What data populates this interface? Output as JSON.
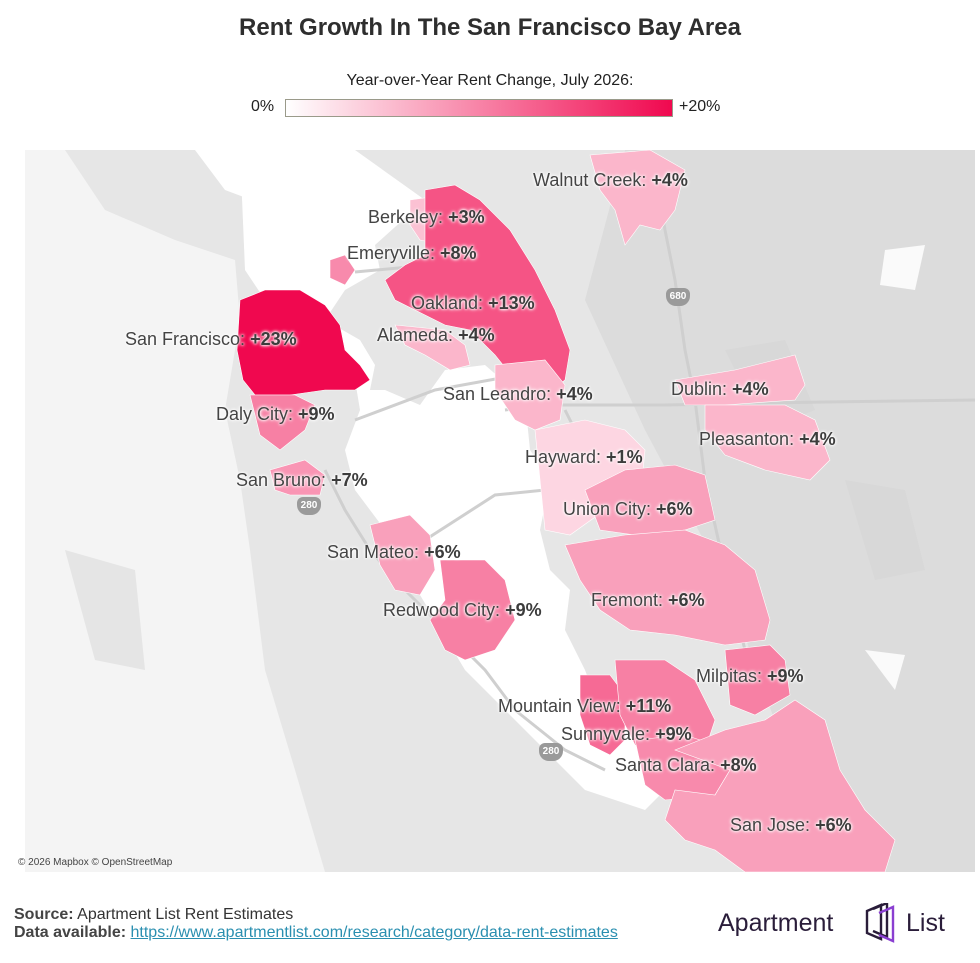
{
  "title": "Rent Growth In The San Francisco Bay Area",
  "legend": {
    "title": "Year-over-Year Rent Change, July 2026:",
    "min_label": "0%",
    "max_label": "+20%",
    "min_color": "#ffffff",
    "max_color": "#f0084f"
  },
  "cities": [
    {
      "name": "Walnut Creek:",
      "value": "+4%",
      "change": 4
    },
    {
      "name": "Berkeley:",
      "value": "+3%",
      "change": 3
    },
    {
      "name": "Emeryville:",
      "value": "+8%",
      "change": 8
    },
    {
      "name": "Oakland:",
      "value": "+13%",
      "change": 13
    },
    {
      "name": "San Francisco:",
      "value": "+23%",
      "change": 23
    },
    {
      "name": "Alameda:",
      "value": "+4%",
      "change": 4
    },
    {
      "name": "San Leandro:",
      "value": "+4%",
      "change": 4
    },
    {
      "name": "Dublin:",
      "value": "+4%",
      "change": 4
    },
    {
      "name": "Daly City:",
      "value": "+9%",
      "change": 9
    },
    {
      "name": "Pleasanton:",
      "value": "+4%",
      "change": 4
    },
    {
      "name": "Hayward:",
      "value": "+1%",
      "change": 1
    },
    {
      "name": "San Bruno:",
      "value": "+7%",
      "change": 7
    },
    {
      "name": "Union City:",
      "value": "+6%",
      "change": 6
    },
    {
      "name": "San Mateo:",
      "value": "+6%",
      "change": 6
    },
    {
      "name": "Fremont:",
      "value": "+6%",
      "change": 6
    },
    {
      "name": "Redwood City:",
      "value": "+9%",
      "change": 9
    },
    {
      "name": "Milpitas:",
      "value": "+9%",
      "change": 9
    },
    {
      "name": "Mountain View:",
      "value": "+11%",
      "change": 11
    },
    {
      "name": "Sunnyvale:",
      "value": "+9%",
      "change": 9
    },
    {
      "name": "Santa Clara:",
      "value": "+8%",
      "change": 8
    },
    {
      "name": "San Jose:",
      "value": "+6%",
      "change": 6
    }
  ],
  "highway_shields": [
    "680",
    "280",
    "280"
  ],
  "attribution": "© 2026 Mapbox © OpenStreetMap",
  "source": {
    "label": "Source:",
    "text": "Apartment List Rent Estimates",
    "data_label": "Data available:",
    "url_text": "https://www.apartmentlist.com/research/category/data-rent-estimates"
  },
  "brand": {
    "word1": "Apartment",
    "word2": "List",
    "color": "#2a1d3a",
    "accent": "#8a3fd1"
  }
}
